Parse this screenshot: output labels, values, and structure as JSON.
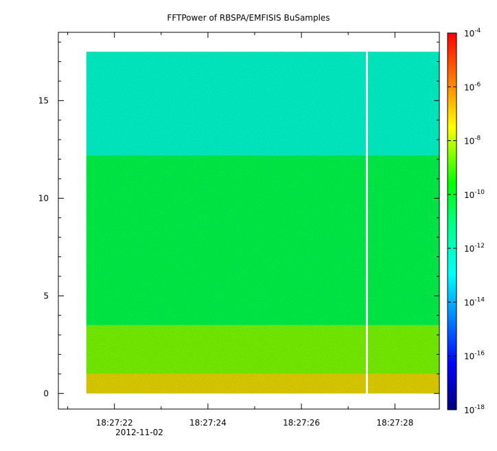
{
  "chart_data": {
    "type": "heatmap",
    "title": "FFTPower of RBSPA/EMFISIS  BuSamples",
    "xlabel": "",
    "ylabel": "",
    "x_tick_labels": [
      "18:27:22",
      "18:27:24",
      "18:27:26",
      "18:27:28"
    ],
    "x_date_label": "2012-11-02",
    "y_ticks": [
      0,
      5,
      10,
      15
    ],
    "ylim": [
      -0.8,
      18.5
    ],
    "xlim_seconds": [
      20.8,
      28.95
    ],
    "data_x_range_seconds": [
      21.4,
      28.95
    ],
    "data_y_range": [
      0,
      17.5
    ],
    "data_gap_seconds": 27.4,
    "colorbar": {
      "scale": "log",
      "range": [
        1e-18,
        0.0001
      ],
      "tick_exponents": [
        -4,
        -6,
        -8,
        -10,
        -12,
        -14,
        -16,
        -18
      ],
      "tick_base": "10"
    },
    "features": [
      {
        "y_range": [
          12.2,
          17.5
        ],
        "level_exponent": -12.5
      },
      {
        "y_range": [
          3.5,
          12.2
        ],
        "level_exponent": -10.5
      },
      {
        "y_range": [
          1.0,
          3.5
        ],
        "level_exponent": -8.5
      },
      {
        "y_range": [
          0,
          1.0
        ],
        "level_exponent": -7
      }
    ],
    "grid": false
  }
}
